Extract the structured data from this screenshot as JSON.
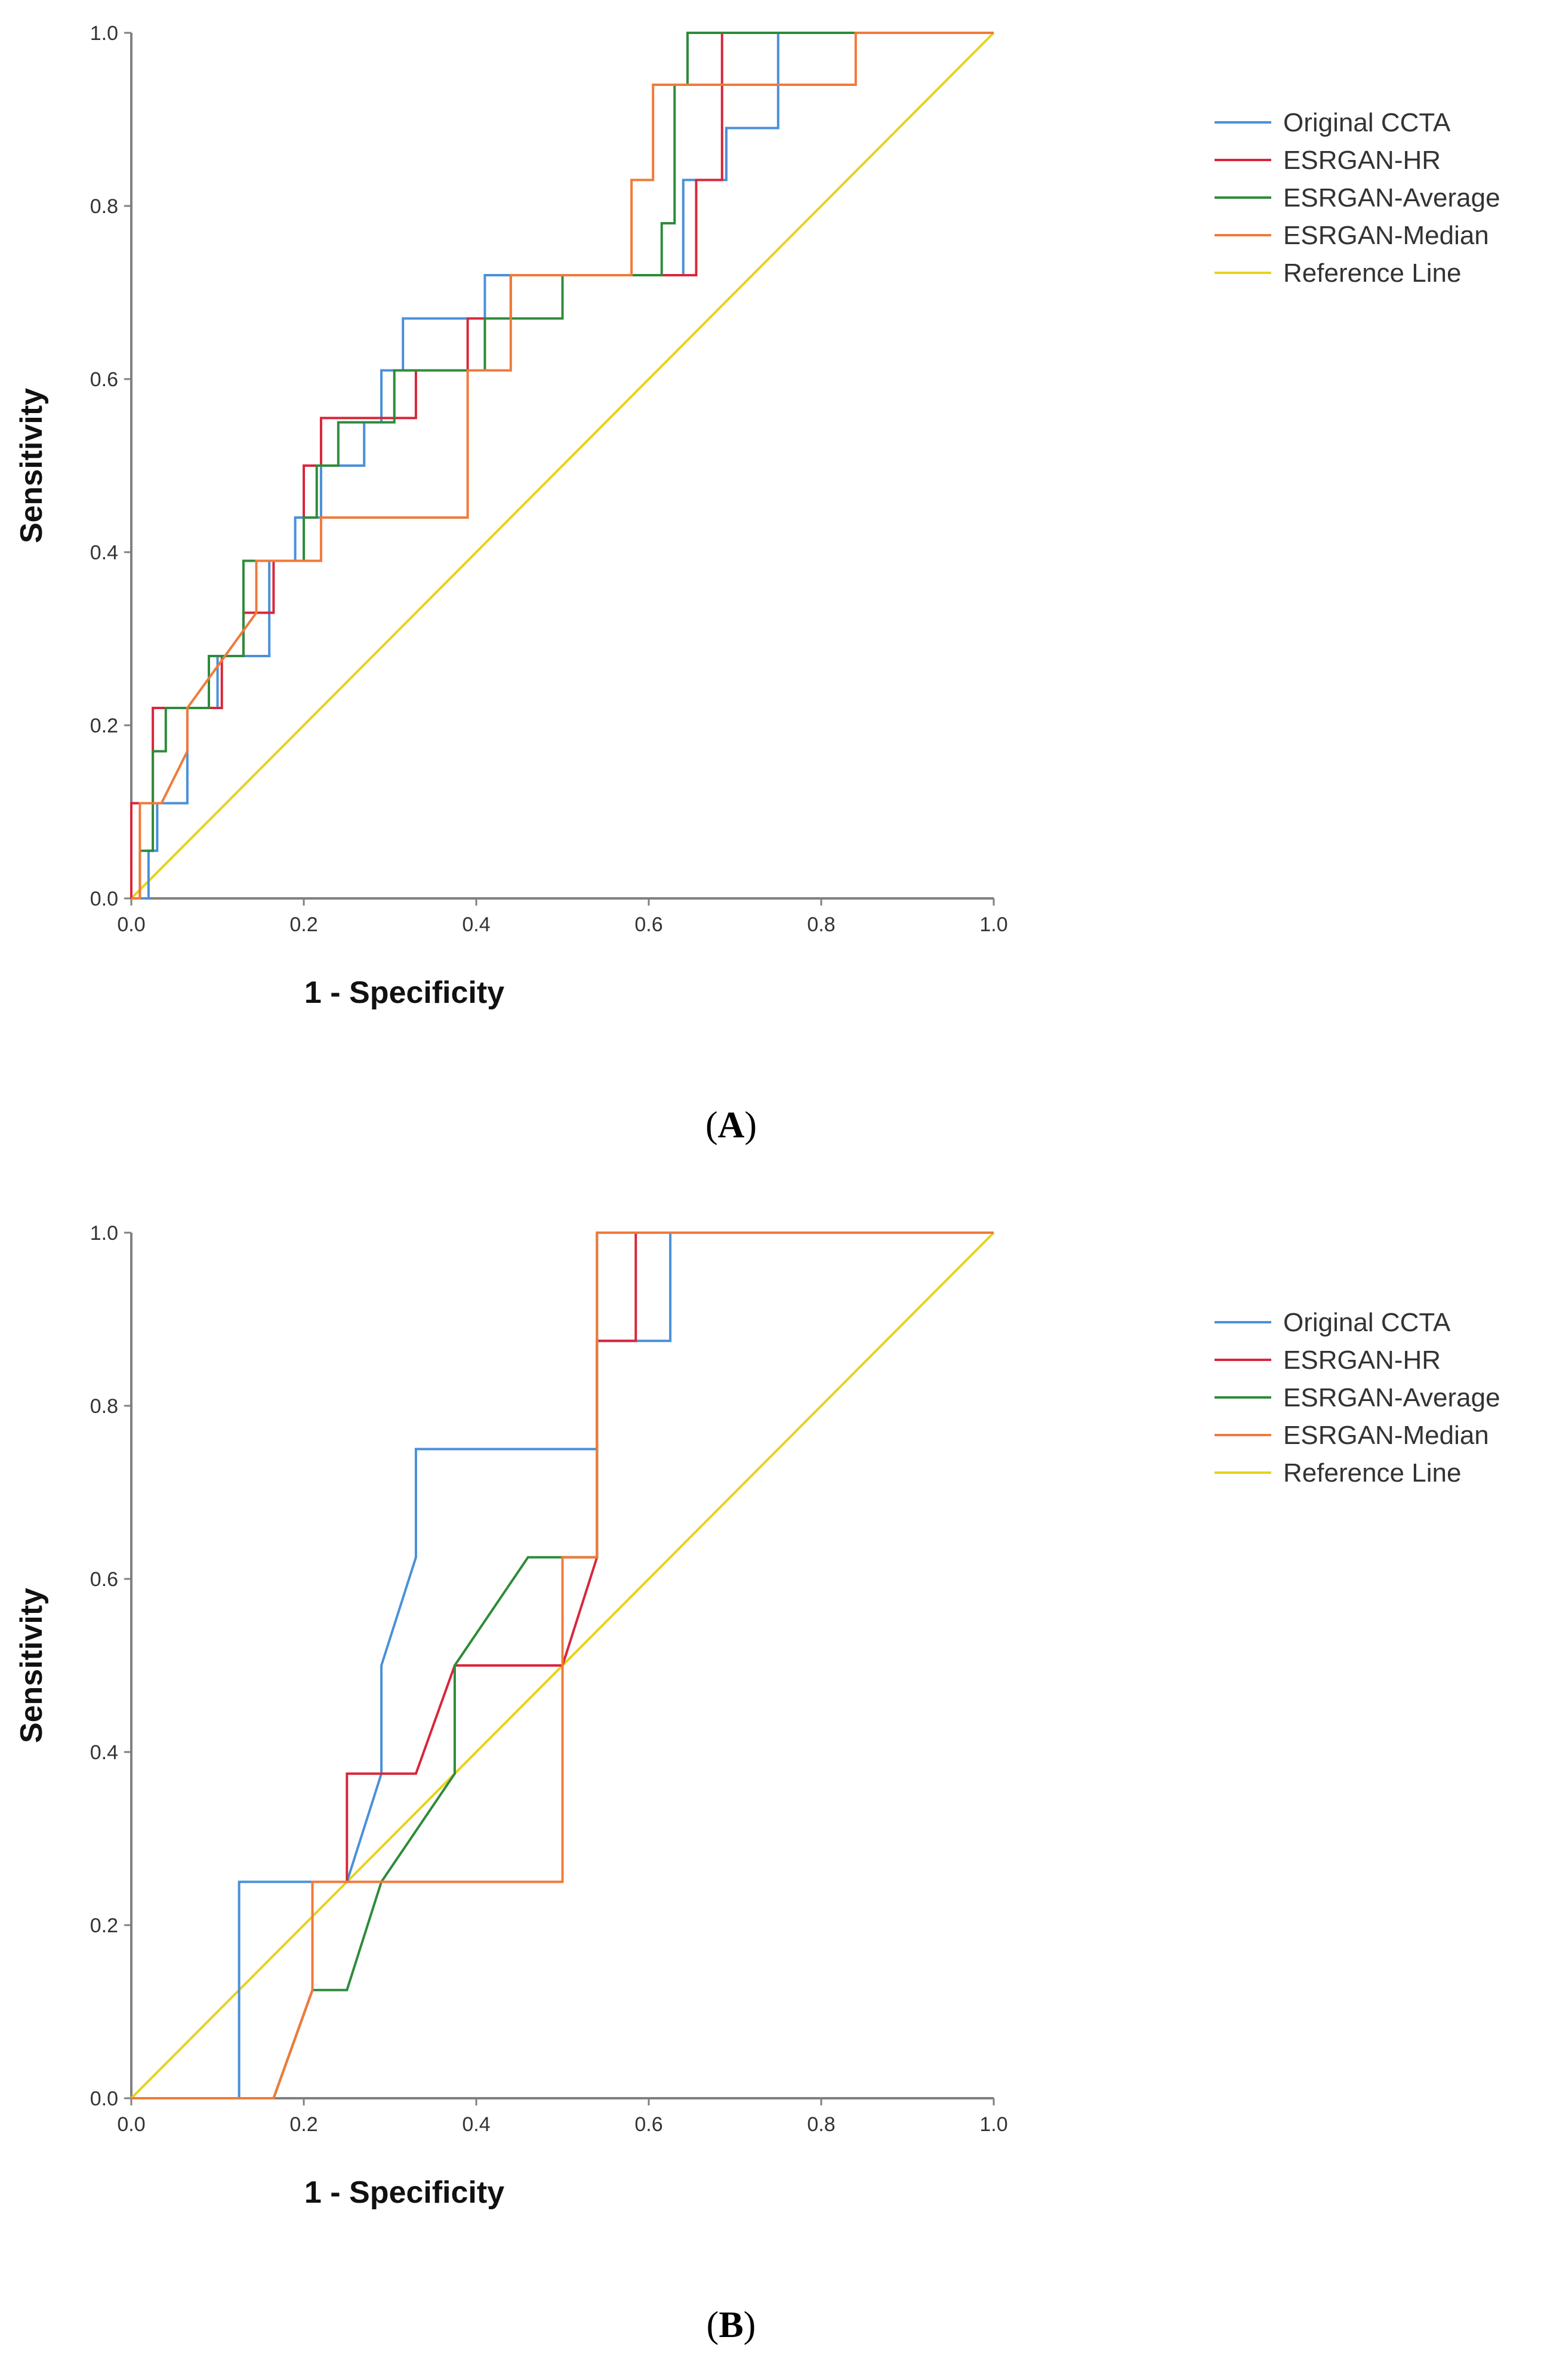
{
  "chart_data": [
    {
      "type": "line",
      "panel_label": "A",
      "xlabel": "1 - Specificity",
      "ylabel": "Sensitivity",
      "xlim": [
        0,
        1
      ],
      "ylim": [
        0,
        1
      ],
      "xticks": [
        "0.0",
        "0.2",
        "0.4",
        "0.6",
        "0.8",
        "1.0"
      ],
      "yticks": [
        "0.0",
        "0.2",
        "0.4",
        "0.6",
        "0.8",
        "1.0"
      ],
      "grid": false,
      "legend_position": "right",
      "series": [
        {
          "name": "Original CCTA",
          "color": "#4a90d9",
          "x": [
            0,
            0.02,
            0.02,
            0.03,
            0.03,
            0.04,
            0.04,
            0.065,
            0.065,
            0.1,
            0.1,
            0.16,
            0.16,
            0.19,
            0.19,
            0.22,
            0.22,
            0.24,
            0.24,
            0.27,
            0.27,
            0.29,
            0.29,
            0.315,
            0.315,
            0.41,
            0.41,
            0.62,
            0.62,
            0.64,
            0.64,
            0.69,
            0.69,
            0.75,
            0.75,
            1.0
          ],
          "y": [
            0,
            0,
            0.055,
            0.055,
            0.11,
            0.11,
            0.11,
            0.11,
            0.22,
            0.22,
            0.28,
            0.28,
            0.39,
            0.39,
            0.44,
            0.44,
            0.5,
            0.5,
            0.5,
            0.5,
            0.55,
            0.55,
            0.61,
            0.61,
            0.67,
            0.67,
            0.72,
            0.72,
            0.72,
            0.72,
            0.83,
            0.83,
            0.89,
            0.89,
            1.0,
            1.0
          ]
        },
        {
          "name": "ESRGAN-HR",
          "color": "#d9263a",
          "x": [
            0,
            0,
            0.025,
            0.025,
            0.105,
            0.105,
            0.13,
            0.13,
            0.165,
            0.165,
            0.2,
            0.2,
            0.22,
            0.22,
            0.33,
            0.33,
            0.39,
            0.39,
            0.44,
            0.44,
            0.47,
            0.47,
            0.655,
            0.655,
            0.685,
            0.685,
            1.0
          ],
          "y": [
            0,
            0.11,
            0.11,
            0.22,
            0.22,
            0.28,
            0.28,
            0.33,
            0.33,
            0.39,
            0.39,
            0.5,
            0.5,
            0.555,
            0.555,
            0.61,
            0.61,
            0.67,
            0.67,
            0.72,
            0.72,
            0.72,
            0.72,
            0.83,
            0.83,
            1.0,
            1.0
          ]
        },
        {
          "name": "ESRGAN-Average",
          "color": "#2e8b3a",
          "x": [
            0,
            0.01,
            0.01,
            0.025,
            0.025,
            0.04,
            0.04,
            0.09,
            0.09,
            0.13,
            0.13,
            0.2,
            0.2,
            0.215,
            0.215,
            0.24,
            0.24,
            0.285,
            0.285,
            0.305,
            0.305,
            0.41,
            0.41,
            0.5,
            0.5,
            0.615,
            0.615,
            0.63,
            0.63,
            0.645,
            0.645,
            0.73,
            0.73,
            1.0
          ],
          "y": [
            0,
            0,
            0.055,
            0.055,
            0.17,
            0.17,
            0.22,
            0.22,
            0.28,
            0.28,
            0.39,
            0.39,
            0.44,
            0.44,
            0.5,
            0.5,
            0.55,
            0.55,
            0.55,
            0.55,
            0.61,
            0.61,
            0.67,
            0.67,
            0.72,
            0.72,
            0.78,
            0.78,
            0.94,
            0.94,
            1.0,
            1.0,
            1.0,
            1.0
          ]
        },
        {
          "name": "ESRGAN-Median",
          "color": "#f07a3a",
          "x": [
            0,
            0.01,
            0.01,
            0.035,
            0.065,
            0.065,
            0.145,
            0.145,
            0.22,
            0.22,
            0.39,
            0.39,
            0.44,
            0.44,
            0.58,
            0.58,
            0.605,
            0.605,
            0.84,
            0.84,
            1.0
          ],
          "y": [
            0,
            0,
            0.11,
            0.11,
            0.17,
            0.22,
            0.33,
            0.39,
            0.39,
            0.44,
            0.44,
            0.61,
            0.61,
            0.72,
            0.72,
            0.83,
            0.83,
            0.94,
            0.94,
            1.0,
            1.0
          ]
        },
        {
          "name": "Reference Line",
          "color": "#e8d21e",
          "x": [
            0,
            1
          ],
          "y": [
            0,
            1
          ]
        }
      ]
    },
    {
      "type": "line",
      "panel_label": "B",
      "xlabel": "1 - Specificity",
      "ylabel": "Sensitivity",
      "xlim": [
        0,
        1
      ],
      "ylim": [
        0,
        1
      ],
      "xticks": [
        "0.0",
        "0.2",
        "0.4",
        "0.6",
        "0.8",
        "1.0"
      ],
      "yticks": [
        "0.0",
        "0.2",
        "0.4",
        "0.6",
        "0.8",
        "1.0"
      ],
      "grid": false,
      "legend_position": "right",
      "series": [
        {
          "name": "Original CCTA",
          "color": "#4a90d9",
          "x": [
            0,
            0.125,
            0.125,
            0.25,
            0.29,
            0.29,
            0.33,
            0.33,
            0.54,
            0.54,
            0.58,
            0.58,
            0.625,
            0.625,
            1.0
          ],
          "y": [
            0,
            0,
            0.25,
            0.25,
            0.375,
            0.5,
            0.625,
            0.75,
            0.75,
            0.875,
            0.875,
            0.875,
            0.875,
            1.0,
            1.0
          ]
        },
        {
          "name": "ESRGAN-HR",
          "color": "#d9263a",
          "x": [
            0,
            0.165,
            0.21,
            0.21,
            0.25,
            0.25,
            0.33,
            0.375,
            0.5,
            0.54,
            0.54,
            0.585,
            0.585,
            1.0
          ],
          "y": [
            0,
            0,
            0.125,
            0.25,
            0.25,
            0.375,
            0.375,
            0.5,
            0.5,
            0.625,
            0.875,
            0.875,
            1.0,
            1.0
          ]
        },
        {
          "name": "ESRGAN-Average",
          "color": "#2e8b3a",
          "x": [
            0,
            0.165,
            0.21,
            0.25,
            0.29,
            0.375,
            0.375,
            0.46,
            0.54,
            0.54,
            1.0
          ],
          "y": [
            0,
            0,
            0.125,
            0.125,
            0.25,
            0.375,
            0.5,
            0.625,
            0.625,
            1.0,
            1.0
          ]
        },
        {
          "name": "ESRGAN-Median",
          "color": "#f07a3a",
          "x": [
            0,
            0.165,
            0.21,
            0.21,
            0.25,
            0.25,
            0.5,
            0.5,
            0.54,
            0.54,
            1.0
          ],
          "y": [
            0,
            0,
            0.125,
            0.25,
            0.25,
            0.25,
            0.25,
            0.625,
            0.625,
            1.0,
            1.0
          ]
        },
        {
          "name": "Reference Line",
          "color": "#e8d21e",
          "x": [
            0,
            1
          ],
          "y": [
            0,
            1
          ]
        }
      ]
    }
  ]
}
